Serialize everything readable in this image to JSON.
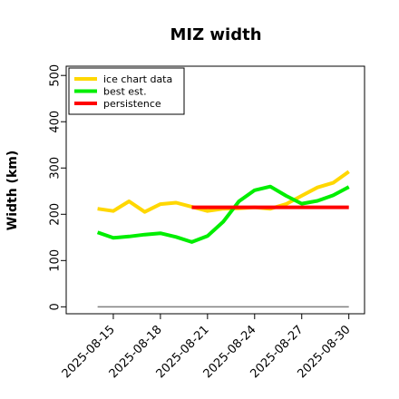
{
  "chart_data": {
    "type": "line",
    "title": "MIZ width",
    "xlabel": "",
    "ylabel": "Width (km)",
    "x_ticks": [
      "2025-08-15",
      "2025-08-18",
      "2025-08-21",
      "2025-08-24",
      "2025-08-27",
      "2025-08-30"
    ],
    "y_ticks": [
      0,
      100,
      200,
      300,
      400,
      500
    ],
    "xlim": [
      "2025-08-12",
      "2025-08-31"
    ],
    "ylim": [
      -15,
      520
    ],
    "grid": false,
    "legend_position": "top-left",
    "reference_line": {
      "y": 0,
      "x": [
        "2025-08-14",
        "2025-08-30"
      ],
      "color": "#7f7f7f"
    },
    "series": [
      {
        "name": "ice chart data",
        "color": "#FFD700",
        "x": [
          "2025-08-14",
          "2025-08-15",
          "2025-08-16",
          "2025-08-17",
          "2025-08-18",
          "2025-08-19",
          "2025-08-20",
          "2025-08-21",
          "2025-08-22",
          "2025-08-23",
          "2025-08-24",
          "2025-08-25",
          "2025-08-26",
          "2025-08-27",
          "2025-08-28",
          "2025-08-29",
          "2025-08-30"
        ],
        "values": [
          212,
          207,
          228,
          205,
          222,
          225,
          216,
          207,
          212,
          213,
          215,
          212,
          222,
          240,
          258,
          268,
          292
        ]
      },
      {
        "name": "best est.",
        "color": "#00EE00",
        "x": [
          "2025-08-14",
          "2025-08-15",
          "2025-08-16",
          "2025-08-17",
          "2025-08-18",
          "2025-08-19",
          "2025-08-20",
          "2025-08-21",
          "2025-08-22",
          "2025-08-23",
          "2025-08-24",
          "2025-08-25",
          "2025-08-26",
          "2025-08-27",
          "2025-08-28",
          "2025-08-29",
          "2025-08-30"
        ],
        "values": [
          161,
          149,
          152,
          156,
          159,
          151,
          140,
          153,
          184,
          228,
          252,
          260,
          240,
          223,
          229,
          241,
          259
        ]
      },
      {
        "name": "persistence",
        "color": "#FF0000",
        "x": [
          "2025-08-20",
          "2025-08-30"
        ],
        "values": [
          215,
          215
        ]
      }
    ]
  }
}
